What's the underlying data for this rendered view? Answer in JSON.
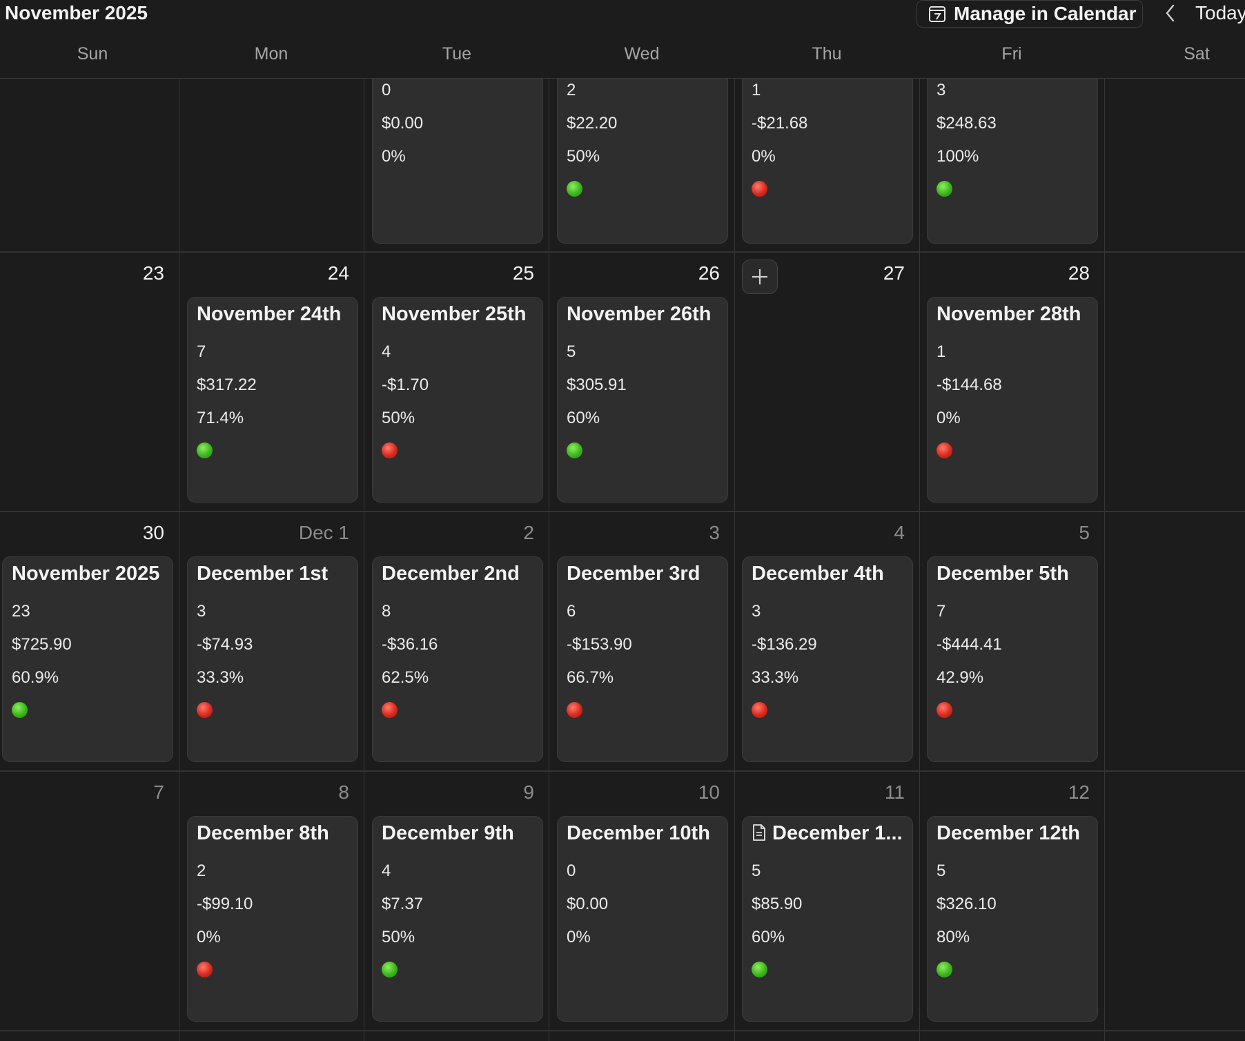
{
  "header": {
    "title": "November 2025",
    "manage_label": "Manage in Calendar",
    "today_label": "Today"
  },
  "weekdays": [
    "Sun",
    "Mon",
    "Tue",
    "Wed",
    "Thu",
    "Fri",
    "Sat"
  ],
  "colors": {
    "green": "#3cb31f",
    "red": "#d8291d"
  },
  "week1": {
    "tue": {
      "l1": "0",
      "l2": "$0.00",
      "l3": "0%"
    },
    "wed": {
      "l1": "2",
      "l2": "$22.20",
      "l3": "50%",
      "status": "green"
    },
    "thu": {
      "l1": "1",
      "l2": "-$21.68",
      "l3": "0%",
      "status": "red"
    },
    "fri": {
      "l1": "3",
      "l2": "$248.63",
      "l3": "100%",
      "status": "green"
    }
  },
  "week2": {
    "days": {
      "sun": "23",
      "mon": "24",
      "tue": "25",
      "wed": "26",
      "thu": "27",
      "fri": "28"
    },
    "mon": {
      "title": "November 24th",
      "l1": "7",
      "l2": "$317.22",
      "l3": "71.4%",
      "status": "green"
    },
    "tue": {
      "title": "November 25th",
      "l1": "4",
      "l2": "-$1.70",
      "l3": "50%",
      "status": "red"
    },
    "wed": {
      "title": "November 26th",
      "l1": "5",
      "l2": "$305.91",
      "l3": "60%",
      "status": "green"
    },
    "fri": {
      "title": "November 28th",
      "l1": "1",
      "l2": "-$144.68",
      "l3": "0%",
      "status": "red"
    }
  },
  "week3": {
    "days": {
      "sun": "30",
      "mon": "Dec 1",
      "tue": "2",
      "wed": "3",
      "thu": "4",
      "fri": "5"
    },
    "sun": {
      "title": "November 2025",
      "l1": "23",
      "l2": "$725.90",
      "l3": "60.9%",
      "status": "green"
    },
    "mon": {
      "title": "December 1st",
      "l1": "3",
      "l2": "-$74.93",
      "l3": "33.3%",
      "status": "red"
    },
    "tue": {
      "title": "December 2nd",
      "l1": "8",
      "l2": "-$36.16",
      "l3": "62.5%",
      "status": "red"
    },
    "wed": {
      "title": "December 3rd",
      "l1": "6",
      "l2": "-$153.90",
      "l3": "66.7%",
      "status": "red"
    },
    "thu": {
      "title": "December 4th",
      "l1": "3",
      "l2": "-$136.29",
      "l3": "33.3%",
      "status": "red"
    },
    "fri": {
      "title": "December 5th",
      "l1": "7",
      "l2": "-$444.41",
      "l3": "42.9%",
      "status": "red"
    }
  },
  "week4": {
    "days": {
      "sun": "7",
      "mon": "8",
      "tue": "9",
      "wed": "10",
      "thu": "11",
      "fri": "12"
    },
    "mon": {
      "title": "December 8th",
      "l1": "2",
      "l2": "-$99.10",
      "l3": "0%",
      "status": "red"
    },
    "tue": {
      "title": "December 9th",
      "l1": "4",
      "l2": "$7.37",
      "l3": "50%",
      "status": "green"
    },
    "wed": {
      "title": "December 10th",
      "l1": "0",
      "l2": "$0.00",
      "l3": "0%"
    },
    "thu": {
      "title": "December 1...",
      "l1": "5",
      "l2": "$85.90",
      "l3": "60%",
      "status": "green",
      "icon": "document-icon"
    },
    "fri": {
      "title": "December 12th",
      "l1": "5",
      "l2": "$326.10",
      "l3": "80%",
      "status": "green"
    }
  }
}
